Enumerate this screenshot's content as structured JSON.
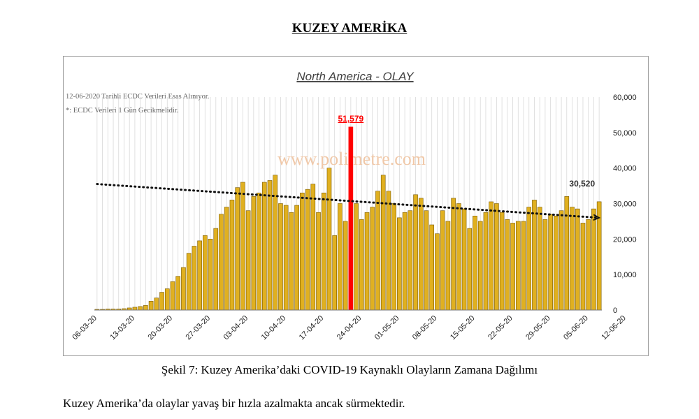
{
  "page": {
    "heading": "KUZEY AMERİKA",
    "caption": "Şekil 7: Kuzey Amerika’daki COVID-19 Kaynaklı Olayların Zamana Dağılımı",
    "body_text": "Kuzey Amerika’da olaylar yavaş bir hızla azalmakta ancak sürmektedir.",
    "watermark": "www.polimetre.com"
  },
  "chart_data": {
    "type": "bar",
    "title": "North America - OLAY",
    "notes": [
      "12-06-2020 Tarihli ECDC Verileri Esas Alınıyor.",
      "*: ECDC Verileri 1 Gün Gecikmelidir."
    ],
    "x_start": "2020-03-06",
    "x_ticks": [
      "06-03-20",
      "13-03-20",
      "20-03-20",
      "27-03-20",
      "03-04-20",
      "10-04-20",
      "17-04-20",
      "24-04-20",
      "01-05-20",
      "08-05-20",
      "15-05-20",
      "22-05-20",
      "29-05-20",
      "05-06-20",
      "12-06-20"
    ],
    "ylim": [
      0,
      60000
    ],
    "y_ticks": [
      "0",
      "10,000",
      "20,000",
      "30,000",
      "40,000",
      "50,000",
      "60,000"
    ],
    "values": [
      200,
      200,
      300,
      300,
      300,
      400,
      600,
      800,
      1000,
      1300,
      2500,
      3400,
      5000,
      6000,
      8000,
      9500,
      12000,
      16000,
      18000,
      19500,
      21000,
      20000,
      23000,
      27000,
      29000,
      31000,
      34500,
      36000,
      28000,
      32000,
      33000,
      36000,
      36500,
      38000,
      30000,
      29500,
      27500,
      29500,
      33000,
      34000,
      35500,
      27500,
      33000,
      40000,
      21000,
      30000,
      25000,
      51579,
      30000,
      25500,
      27500,
      29000,
      33500,
      38000,
      33500,
      30000,
      26000,
      27500,
      28000,
      32500,
      31500,
      28000,
      24000,
      21500,
      28000,
      25000,
      31500,
      30000,
      28500,
      23000,
      26500,
      25000,
      27500,
      30500,
      30000,
      27500,
      25500,
      24500,
      25000,
      25000,
      29000,
      31000,
      29000,
      25500,
      27000,
      26500,
      28000,
      32000,
      29000,
      28500,
      24500,
      25500,
      28500,
      30520
    ],
    "highlight_index": 47,
    "annotations": [
      "51,579",
      "30,520"
    ],
    "trendline": {
      "start": 35500,
      "end": 26000
    },
    "colors": {
      "bar": "#e0b020",
      "bar_stroke": "#7a5a00",
      "highlight": "#ff0000",
      "annotation": "#ff0000"
    },
    "grid": "vertical",
    "legend": "none"
  }
}
